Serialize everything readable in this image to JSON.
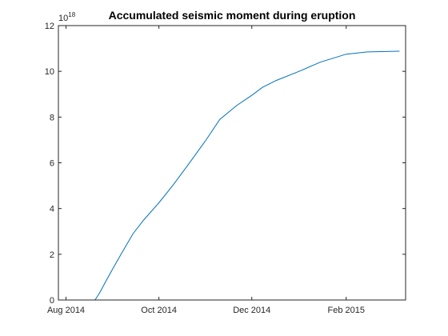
{
  "chart_data": {
    "type": "line",
    "title": "Accumulated seismic moment during eruption",
    "xlabel": "",
    "ylabel": "",
    "y_exponent_base": "10",
    "y_exponent_power": "18",
    "xlim": [
      "2014-07-27",
      "2015-03-12"
    ],
    "ylim": [
      0,
      12
    ],
    "xticks": [
      {
        "date": "2014-08-01",
        "label": "Aug 2014"
      },
      {
        "date": "2014-10-01",
        "label": "Oct 2014"
      },
      {
        "date": "2014-12-01",
        "label": "Dec 2014"
      },
      {
        "date": "2015-02-01",
        "label": "Feb 2015"
      }
    ],
    "yticks": [
      {
        "value": 0,
        "label": "0"
      },
      {
        "value": 2,
        "label": "2"
      },
      {
        "value": 4,
        "label": "4"
      },
      {
        "value": 6,
        "label": "6"
      },
      {
        "value": 8,
        "label": "8"
      },
      {
        "value": 10,
        "label": "10"
      },
      {
        "value": 12,
        "label": "12"
      }
    ],
    "grid": false,
    "box": true,
    "series": [
      {
        "color": "#0072bd",
        "x": [
          "2014-08-01",
          "2014-08-20",
          "2014-08-23",
          "2014-08-27",
          "2014-09-01",
          "2014-09-07",
          "2014-09-14",
          "2014-09-21",
          "2014-10-01",
          "2014-10-10",
          "2014-10-20",
          "2014-11-01",
          "2014-11-10",
          "2014-11-21",
          "2014-12-01",
          "2014-12-08",
          "2014-12-17",
          "2015-01-01",
          "2015-01-15",
          "2015-02-01",
          "2015-02-15",
          "2015-03-08"
        ],
        "y": [
          0,
          0,
          0.3,
          0.8,
          1.4,
          2.1,
          2.9,
          3.5,
          4.25,
          5.0,
          5.9,
          7.0,
          7.9,
          8.5,
          8.95,
          9.3,
          9.6,
          10.0,
          10.4,
          10.75,
          10.85,
          10.88
        ]
      }
    ]
  }
}
